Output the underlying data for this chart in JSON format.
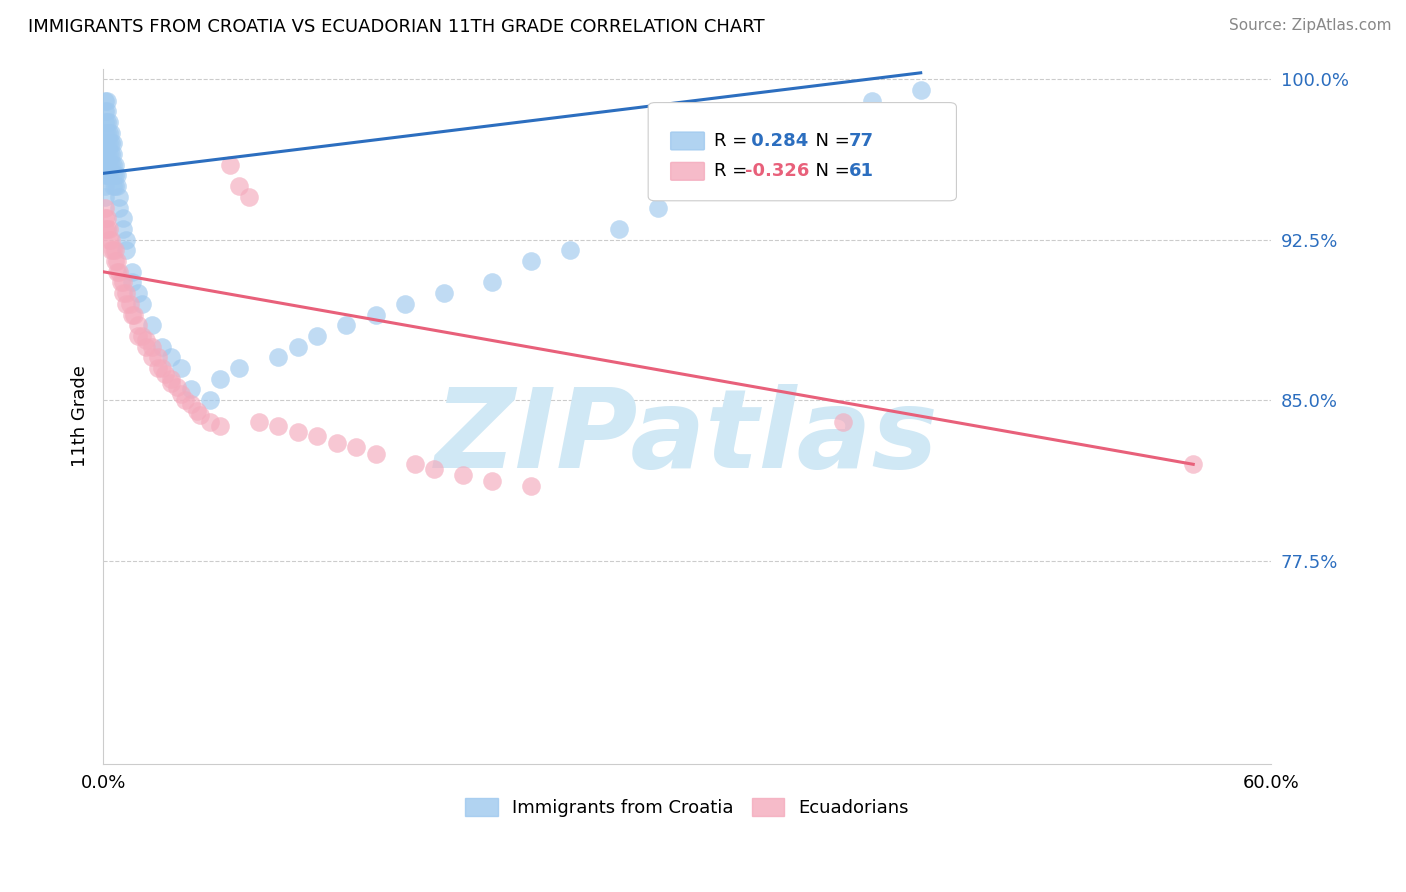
{
  "title": "IMMIGRANTS FROM CROATIA VS ECUADORIAN 11TH GRADE CORRELATION CHART",
  "source": "Source: ZipAtlas.com",
  "ylabel": "11th Grade",
  "xlim": [
    0.0,
    0.6
  ],
  "ylim": [
    0.68,
    1.005
  ],
  "yticks": [
    0.775,
    0.85,
    0.925,
    1.0
  ],
  "ytick_labels": [
    "77.5%",
    "85.0%",
    "92.5%",
    "100.0%"
  ],
  "xticks": [
    0.0,
    0.15,
    0.3,
    0.45,
    0.6
  ],
  "xtick_labels": [
    "0.0%",
    "",
    "",
    "",
    "60.0%"
  ],
  "blue_color": "#9EC8EE",
  "pink_color": "#F4AABC",
  "blue_line_color": "#2C6EBF",
  "pink_line_color": "#E8607A",
  "watermark": "ZIPatlas",
  "watermark_color": "#D0E8F5",
  "legend_r1_color": "#2C6EBF",
  "legend_r2_color": "#E8607A",
  "legend_n_color": "#2C6EBF",
  "blue_scatter_x": [
    0.001,
    0.001,
    0.001,
    0.001,
    0.001,
    0.001,
    0.001,
    0.001,
    0.001,
    0.001,
    0.002,
    0.002,
    0.002,
    0.002,
    0.002,
    0.002,
    0.002,
    0.002,
    0.003,
    0.003,
    0.003,
    0.003,
    0.003,
    0.003,
    0.004,
    0.004,
    0.004,
    0.004,
    0.005,
    0.005,
    0.005,
    0.005,
    0.005,
    0.006,
    0.006,
    0.006,
    0.007,
    0.007,
    0.008,
    0.008,
    0.01,
    0.01,
    0.012,
    0.012,
    0.015,
    0.015,
    0.018,
    0.02,
    0.025,
    0.03,
    0.035,
    0.04,
    0.045,
    0.055,
    0.06,
    0.07,
    0.09,
    0.1,
    0.11,
    0.125,
    0.14,
    0.155,
    0.175,
    0.2,
    0.22,
    0.24,
    0.265,
    0.285,
    0.3,
    0.315,
    0.33,
    0.34,
    0.35,
    0.365,
    0.38,
    0.395,
    0.42
  ],
  "blue_scatter_y": [
    0.99,
    0.985,
    0.98,
    0.975,
    0.97,
    0.965,
    0.96,
    0.955,
    0.95,
    0.945,
    0.99,
    0.985,
    0.98,
    0.975,
    0.97,
    0.965,
    0.96,
    0.955,
    0.98,
    0.975,
    0.97,
    0.965,
    0.96,
    0.955,
    0.975,
    0.97,
    0.965,
    0.96,
    0.97,
    0.965,
    0.96,
    0.955,
    0.95,
    0.96,
    0.955,
    0.95,
    0.955,
    0.95,
    0.945,
    0.94,
    0.935,
    0.93,
    0.925,
    0.92,
    0.91,
    0.905,
    0.9,
    0.895,
    0.885,
    0.875,
    0.87,
    0.865,
    0.855,
    0.85,
    0.86,
    0.865,
    0.87,
    0.875,
    0.88,
    0.885,
    0.89,
    0.895,
    0.9,
    0.905,
    0.915,
    0.92,
    0.93,
    0.94,
    0.95,
    0.96,
    0.965,
    0.97,
    0.975,
    0.98,
    0.985,
    0.99,
    0.995
  ],
  "pink_scatter_x": [
    0.001,
    0.001,
    0.001,
    0.002,
    0.002,
    0.003,
    0.003,
    0.004,
    0.004,
    0.005,
    0.006,
    0.006,
    0.007,
    0.007,
    0.008,
    0.009,
    0.01,
    0.01,
    0.012,
    0.012,
    0.014,
    0.015,
    0.016,
    0.018,
    0.018,
    0.02,
    0.022,
    0.022,
    0.025,
    0.025,
    0.028,
    0.028,
    0.03,
    0.032,
    0.035,
    0.035,
    0.038,
    0.04,
    0.042,
    0.045,
    0.048,
    0.05,
    0.055,
    0.06,
    0.065,
    0.07,
    0.075,
    0.08,
    0.09,
    0.1,
    0.11,
    0.12,
    0.13,
    0.14,
    0.16,
    0.17,
    0.185,
    0.2,
    0.22,
    0.38,
    0.56
  ],
  "pink_scatter_y": [
    0.94,
    0.935,
    0.93,
    0.935,
    0.93,
    0.93,
    0.925,
    0.925,
    0.92,
    0.92,
    0.92,
    0.915,
    0.915,
    0.91,
    0.91,
    0.905,
    0.905,
    0.9,
    0.9,
    0.895,
    0.895,
    0.89,
    0.89,
    0.885,
    0.88,
    0.88,
    0.878,
    0.875,
    0.875,
    0.87,
    0.87,
    0.865,
    0.865,
    0.862,
    0.86,
    0.858,
    0.856,
    0.853,
    0.85,
    0.848,
    0.845,
    0.843,
    0.84,
    0.838,
    0.96,
    0.95,
    0.945,
    0.84,
    0.838,
    0.835,
    0.833,
    0.83,
    0.828,
    0.825,
    0.82,
    0.818,
    0.815,
    0.812,
    0.81,
    0.84,
    0.82
  ],
  "blue_line_x": [
    0.0,
    0.42
  ],
  "blue_line_y": [
    0.956,
    1.003
  ],
  "pink_line_x": [
    0.0,
    0.56
  ],
  "pink_line_y": [
    0.91,
    0.82
  ]
}
